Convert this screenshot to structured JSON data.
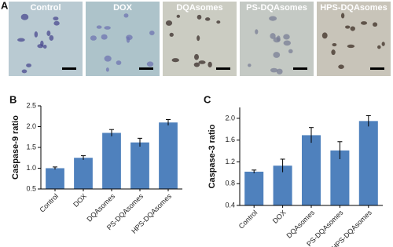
{
  "panel_a": {
    "label": "A",
    "images": [
      "Control",
      "DOX",
      "DQAsomes",
      "PS-DQAsomes",
      "HPS-DQAsomes"
    ]
  },
  "chart_data": [
    {
      "type": "bar",
      "panel_label": "B",
      "y_label": "Caspase-9 ratio",
      "categories": [
        "Control",
        "DOX",
        "DQAsomes",
        "PS-DQAsomes",
        "HPS-DQAsomes"
      ],
      "values": [
        1.0,
        1.25,
        1.85,
        1.62,
        2.1
      ],
      "errors": [
        0.03,
        0.05,
        0.08,
        0.1,
        0.07
      ],
      "color": "#4f81bd",
      "ylim": [
        0.5,
        2.5
      ],
      "yticks": [
        0.5,
        {
          "value": 1.0,
          "label": "1.0"
        },
        1.5,
        {
          "value": 2.0,
          "label": "2.0"
        },
        2.5
      ]
    },
    {
      "type": "bar",
      "panel_label": "C",
      "y_label": "Caspase-3 ratio",
      "categories": [
        "Control",
        "DOX",
        "DQAsomes",
        "PS-DQAsomes",
        "HPS-DQAsomes"
      ],
      "values": [
        1.02,
        1.13,
        1.69,
        1.41,
        1.95
      ],
      "errors": [
        0.03,
        0.12,
        0.14,
        0.16,
        0.1
      ],
      "color": "#4f81bd",
      "ylim": [
        0.4,
        2.2
      ],
      "yticks": [
        0.4,
        0.8,
        1.2,
        1.6,
        {
          "value": 2.0,
          "label": "2.0"
        }
      ]
    }
  ]
}
